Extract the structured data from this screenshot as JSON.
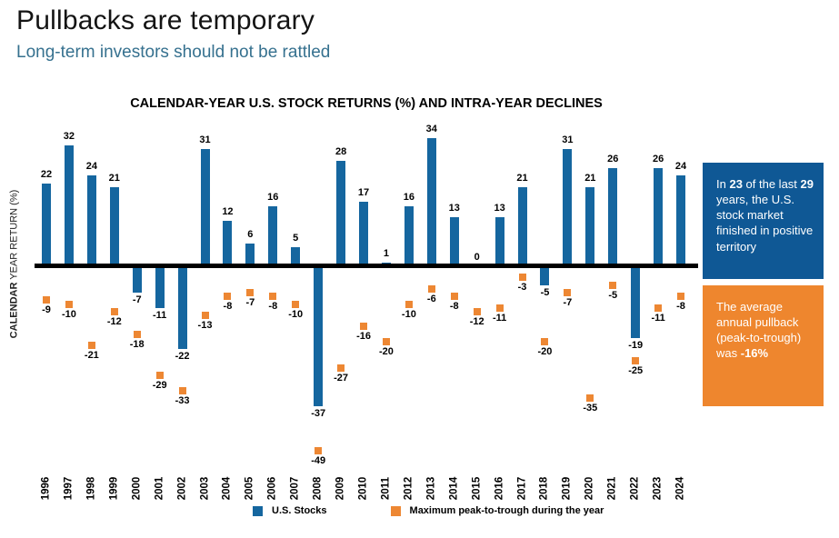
{
  "header": {
    "title": "Pullbacks are temporary",
    "subtitle": "Long-term investors should not be rattled"
  },
  "chart_data": {
    "type": "bar",
    "title": "CALENDAR-YEAR U.S. STOCK RETURNS (%) AND INTRA-YEAR DECLINES",
    "ylabel": "CALENDAR YEAR RETURN (%)",
    "ylabel_bold": "CALENDAR",
    "ylabel_rest": " YEAR RETURN (%)",
    "xlabel": "",
    "grid": false,
    "legend_position": "bottom",
    "ylim": [
      -55,
      40
    ],
    "categories": [
      "1996",
      "1997",
      "1998",
      "1999",
      "2000",
      "2001",
      "2002",
      "2003",
      "2004",
      "2005",
      "2006",
      "2007",
      "2008",
      "2009",
      "2010",
      "2011",
      "2012",
      "2013",
      "2014",
      "2015",
      "2016",
      "2017",
      "2018",
      "2019",
      "2020",
      "2021",
      "2022",
      "2023",
      "2024"
    ],
    "series": [
      {
        "name": "U.S. Stocks",
        "type": "bar",
        "color": "#15669F",
        "values": [
          22,
          32,
          24,
          21,
          -7,
          -11,
          -22,
          31,
          12,
          6,
          16,
          5,
          -37,
          28,
          17,
          1,
          16,
          34,
          13,
          0,
          13,
          21,
          -5,
          31,
          21,
          26,
          -19,
          26,
          24
        ]
      },
      {
        "name": "Maximum peak-to-trough during the year",
        "type": "scatter-square",
        "color": "#ED8733",
        "values": [
          -9,
          -10,
          -21,
          -12,
          -18,
          -29,
          -33,
          -13,
          -8,
          -7,
          -8,
          -10,
          -49,
          -27,
          -16,
          -20,
          -10,
          -6,
          -8,
          -12,
          -11,
          -3,
          -20,
          -7,
          -35,
          -5,
          -25,
          -11,
          -8
        ]
      }
    ]
  },
  "callout_blue": {
    "t1": "In ",
    "b1": "23",
    "t2": " of the last ",
    "b2": "29",
    "t3": " years, the U.S. stock market finished in positive territory"
  },
  "callout_orange": {
    "t1": "The average annual pullback (peak-to-trough) was ",
    "b1": "-16%"
  },
  "colors": {
    "bar_blue": "#15669F",
    "marker_orange": "#ED8733",
    "box_blue": "#0F5895",
    "box_orange": "#EE862E",
    "subtitle_blue": "#36718F",
    "zero_line": "#000000"
  }
}
